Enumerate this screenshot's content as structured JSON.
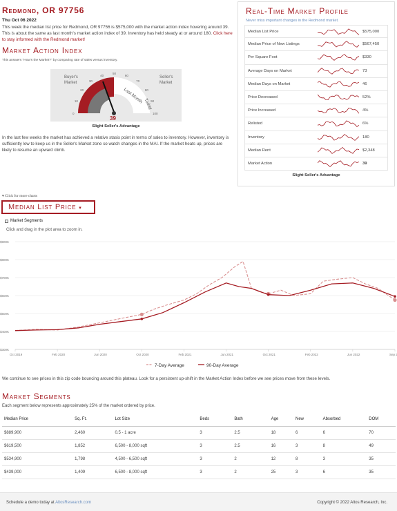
{
  "header": {
    "city_title": "Redmond, OR 97756",
    "date": "Thu Oct 06 2022",
    "summary_text": "This week the median list price for Redmond, OR 97756 is $575,000 with the market action index hovering around 39. This is about the same as last month's market action index of 39. Inventory has held steady at or around 180.",
    "summary_link": "Click here to stay informed with the Redmond market!"
  },
  "mai": {
    "title": "Market Action Index",
    "subtitle": "This answers \"How's the Market?\" by comparing rate of sales versus inventory.",
    "buyers_label_1": "Buyer's",
    "buyers_label_2": "Market",
    "sellers_label_1": "Seller's",
    "sellers_label_2": "Market",
    "last_month": "Last Month",
    "today": "Today",
    "value": "39",
    "ticks": [
      "0",
      "10",
      "20",
      "30",
      "40",
      "50",
      "60",
      "70",
      "80",
      "90",
      "100"
    ],
    "caption": "Slight Seller's Advantage",
    "description": "In the last few weeks the market has achieved a relative stasis point in terms of sales to inventory. However, inventory is sufficiently low to keep us in the Seller's Market zone so watch changes in the MAI. If the market heats up, prices are likely to resume an upward climb."
  },
  "profile": {
    "title": "Real-Time Market Profile",
    "subtitle": "Never miss important changes in the Redmond market.",
    "rows": [
      {
        "label": "Median List Price",
        "value": "$575,000"
      },
      {
        "label": "Median Price of New Listings",
        "value": "$567,450"
      },
      {
        "label": "Per Square Foot",
        "value": "$330"
      },
      {
        "label": "Average Days on Market",
        "value": "73"
      },
      {
        "label": "Median Days on Market",
        "value": "46"
      },
      {
        "label": "Price Decreased",
        "value": "52%"
      },
      {
        "label": "Price Increased",
        "value": "4%"
      },
      {
        "label": "Relisted",
        "value": "6%"
      },
      {
        "label": "Inventory",
        "value": "180"
      },
      {
        "label": "Median Rent",
        "value": "$2,348"
      },
      {
        "label": "Market Action",
        "value": "39"
      }
    ],
    "footer": "Slight Seller's Advantage"
  },
  "controls": {
    "more_charts": "Click for more charts",
    "dropdown_label": "Median List Price",
    "segments_checkbox": "Market Segments",
    "zoom_hint": "Click and drag in the plot area to zoom in."
  },
  "chart_data": {
    "type": "line",
    "y_ticks": [
      "$900K",
      "$800K",
      "$700K",
      "$600K",
      "$500K",
      "$400K",
      "$300K"
    ],
    "x_ticks": [
      "Oct 2019",
      "Feb 2020",
      "Jun 2020",
      "Oct 2020",
      "Feb 2021",
      "Jun 2021",
      "Oct 2021",
      "Feb 2022",
      "Jun 2022",
      "Sep 2022"
    ],
    "ylim": [
      300000,
      900000
    ],
    "series": [
      {
        "name": "7-Day Average",
        "style": "dashed",
        "color": "#d98f8f",
        "x": [
          0,
          0.5,
          1,
          1.5,
          2,
          2.5,
          3,
          3.3,
          3.6,
          4,
          4.3,
          4.6,
          4.9,
          5.2,
          5.4,
          5.6,
          5.8,
          6.0,
          6.3,
          6.6,
          7.0,
          7.3,
          7.6,
          8.0,
          8.3,
          8.6,
          9.0
        ],
        "values": [
          405000,
          412000,
          408000,
          425000,
          448000,
          472000,
          495000,
          525000,
          548000,
          575000,
          610000,
          660000,
          700000,
          760000,
          790000,
          640000,
          620000,
          610000,
          630000,
          600000,
          610000,
          680000,
          690000,
          700000,
          665000,
          640000,
          575000
        ]
      },
      {
        "name": "90-Day Average",
        "style": "solid",
        "color": "#a51c23",
        "x": [
          0,
          0.5,
          1,
          1.5,
          2,
          2.5,
          3,
          3.5,
          4,
          4.5,
          5,
          5.3,
          5.6,
          6,
          6.5,
          7,
          7.5,
          8,
          8.5,
          9
        ],
        "values": [
          405000,
          408000,
          410000,
          420000,
          440000,
          455000,
          470000,
          505000,
          560000,
          620000,
          670000,
          650000,
          640000,
          605000,
          600000,
          630000,
          665000,
          670000,
          640000,
          595000
        ]
      }
    ],
    "legend": [
      "7-Day Average",
      "90-Day Average"
    ]
  },
  "chart_note": "We continue to see prices in this zip code bouncing around this plateau. Look for a persistent up-shift in the Market Action Index before we see prices move from these levels.",
  "segments": {
    "title": "Market Segments",
    "subtitle": "Each segment below represents approximately 25% of the market ordered by price.",
    "headers": [
      "Median Price",
      "Sq. Ft.",
      "Lot Size",
      "Beds",
      "Bath",
      "Age",
      "New",
      "Absorbed",
      "DOM"
    ],
    "rows": [
      [
        "$889,900",
        "2,460",
        "0.5 - 1 acre",
        "3",
        "2.5",
        "18",
        "6",
        "6",
        "70"
      ],
      [
        "$619,500",
        "1,852",
        "6,500 - 8,000 sqft",
        "3",
        "2.5",
        "16",
        "3",
        "8",
        "49"
      ],
      [
        "$534,900",
        "1,798",
        "4,500 - 6,500 sqft",
        "3",
        "2",
        "12",
        "8",
        "3",
        "35"
      ],
      [
        "$439,000",
        "1,409",
        "6,500 - 8,000 sqft",
        "3",
        "2",
        "25",
        "3",
        "6",
        "35"
      ]
    ]
  },
  "footer": {
    "schedule_prefix": "Schedule a demo today at",
    "schedule_link": "AltosResearch.com",
    "copyright": "Copyright © 2022 Altos Research, Inc."
  }
}
